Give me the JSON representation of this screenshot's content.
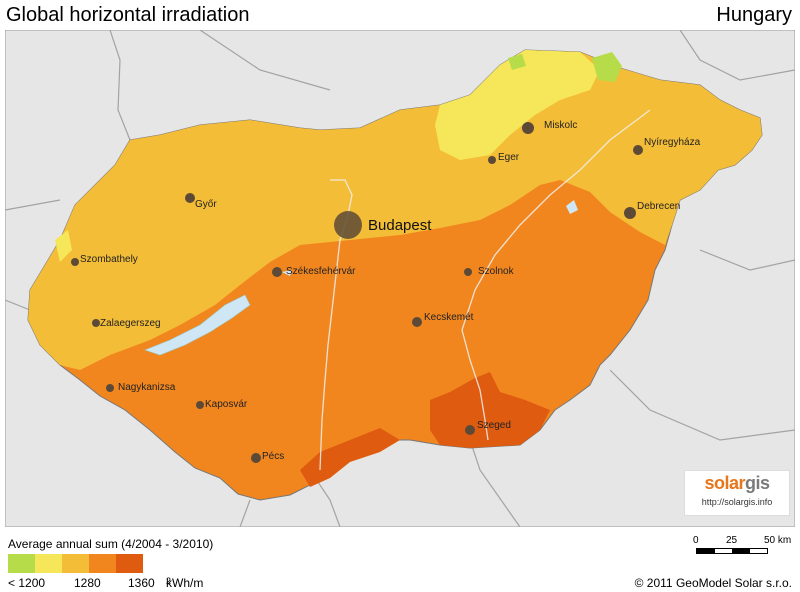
{
  "header": {
    "title": "Global horizontal irradiation",
    "country": "Hungary"
  },
  "map": {
    "colors": {
      "background": "#e6e6e6",
      "neighbor_border": "#a3a3a3",
      "class1": "#b7dc4a",
      "class2": "#f6e659",
      "class3": "#f4bd37",
      "class4": "#f1861f",
      "class5": "#de5b0f",
      "lake": "#cfe7f4",
      "city": "#5c4a36",
      "river": "#f0f0f0"
    },
    "cities": [
      {
        "name": "Budapest",
        "major": true
      },
      {
        "name": "Miskolc"
      },
      {
        "name": "Nyíregyháza"
      },
      {
        "name": "Eger"
      },
      {
        "name": "Debrecen"
      },
      {
        "name": "Győr"
      },
      {
        "name": "Szombathely"
      },
      {
        "name": "Székesfehérvár"
      },
      {
        "name": "Szolnok"
      },
      {
        "name": "Kecskemét"
      },
      {
        "name": "Zalaegerszeg"
      },
      {
        "name": "Nagykanizsa"
      },
      {
        "name": "Kaposvár"
      },
      {
        "name": "Szeged"
      },
      {
        "name": "Pécs"
      }
    ]
  },
  "legend": {
    "title": "Average annual sum (4/2004 - 3/2010)",
    "colors": [
      "#b7dc4a",
      "#f6e659",
      "#f4bd37",
      "#f1861f",
      "#de5b0f"
    ],
    "labels": [
      "< 1200",
      "1280",
      "1360"
    ],
    "unit_base": "kWh/m",
    "unit_exp": "2"
  },
  "scale": {
    "labels": [
      "0",
      "25",
      "50 km"
    ]
  },
  "logo": {
    "brand_a": "solar",
    "brand_b": "gis",
    "url": "http://solargis.info"
  },
  "copyright": "© 2011 GeoModel Solar s.r.o."
}
